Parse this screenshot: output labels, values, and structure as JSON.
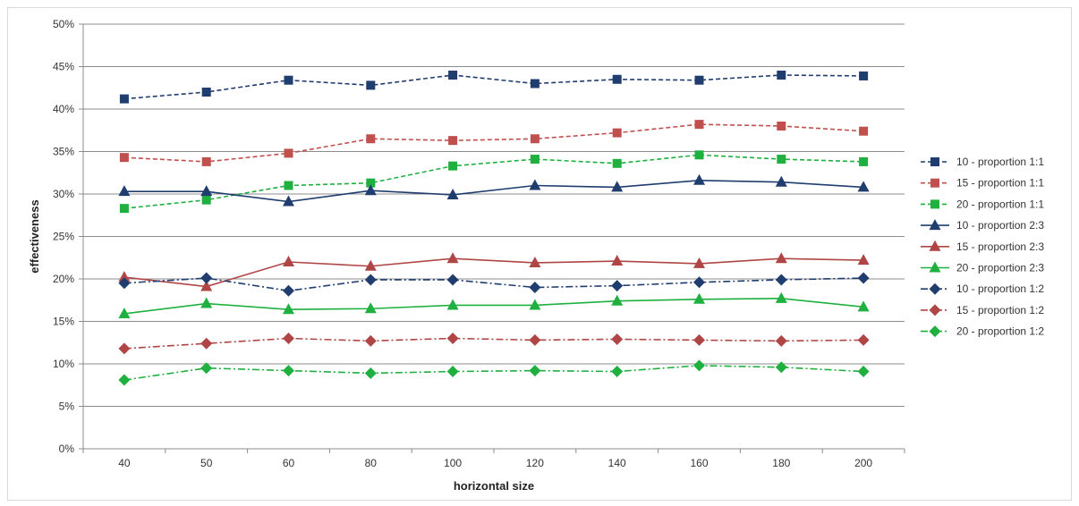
{
  "chart_data": {
    "type": "line",
    "title": "",
    "xlabel": "horizontal size",
    "ylabel": "effectiveness",
    "categories": [
      "40",
      "50",
      "60",
      "80",
      "100",
      "120",
      "140",
      "160",
      "180",
      "200"
    ],
    "yticks": [
      "0%",
      "5%",
      "10%",
      "15%",
      "20%",
      "25%",
      "30%",
      "35%",
      "40%",
      "45%",
      "50%"
    ],
    "ylim": [
      0,
      50
    ],
    "grid": true,
    "legend_position": "right",
    "series": [
      {
        "name": "10 - proportion 1:1",
        "color": "#1f3d6e",
        "marker": "square",
        "dash": "dash",
        "values": [
          41.2,
          42.0,
          43.4,
          42.8,
          44.0,
          43.0,
          43.5,
          43.4,
          44.0,
          43.9
        ]
      },
      {
        "name": "15 - proportion 1:1",
        "color": "#c0504d",
        "marker": "square",
        "dash": "dash",
        "values": [
          34.3,
          33.8,
          34.8,
          36.5,
          36.3,
          36.5,
          37.2,
          38.2,
          38.0,
          37.4
        ]
      },
      {
        "name": "20 - proportion 1:1",
        "color": "#1fb040",
        "marker": "square",
        "dash": "dash",
        "values": [
          28.3,
          29.3,
          31.0,
          31.3,
          33.3,
          34.1,
          33.6,
          34.6,
          34.1,
          33.8
        ]
      },
      {
        "name": "10 - proportion 2:3",
        "color": "#1f3d6e",
        "marker": "triangle",
        "dash": "solid",
        "values": [
          30.3,
          30.3,
          29.1,
          30.4,
          29.9,
          31.0,
          30.8,
          31.6,
          31.4,
          30.8
        ]
      },
      {
        "name": "15 - proportion 2:3",
        "color": "#b04545",
        "marker": "triangle",
        "dash": "solid",
        "values": [
          20.2,
          19.1,
          22.0,
          21.5,
          22.4,
          21.9,
          22.1,
          21.8,
          22.4,
          22.2
        ]
      },
      {
        "name": "20 - proportion 2:3",
        "color": "#1fb040",
        "marker": "triangle",
        "dash": "solid",
        "values": [
          15.9,
          17.1,
          16.4,
          16.5,
          16.9,
          16.9,
          17.4,
          17.6,
          17.7,
          16.7
        ]
      },
      {
        "name": "10 - proportion 1:2",
        "color": "#1f3d6e",
        "marker": "diamond",
        "dash": "dashdot",
        "values": [
          19.5,
          20.1,
          18.6,
          19.9,
          19.9,
          19.0,
          19.2,
          19.6,
          19.9,
          20.1
        ]
      },
      {
        "name": "15 - proportion 1:2",
        "color": "#b04545",
        "marker": "diamond",
        "dash": "dashdot",
        "values": [
          11.8,
          12.4,
          13.0,
          12.7,
          13.0,
          12.8,
          12.9,
          12.8,
          12.7,
          12.8
        ]
      },
      {
        "name": "20 - proportion 1:2",
        "color": "#1fb040",
        "marker": "diamond",
        "dash": "dashdot",
        "values": [
          8.1,
          9.5,
          9.2,
          8.9,
          9.1,
          9.2,
          9.1,
          9.8,
          9.6,
          9.1
        ]
      }
    ]
  }
}
